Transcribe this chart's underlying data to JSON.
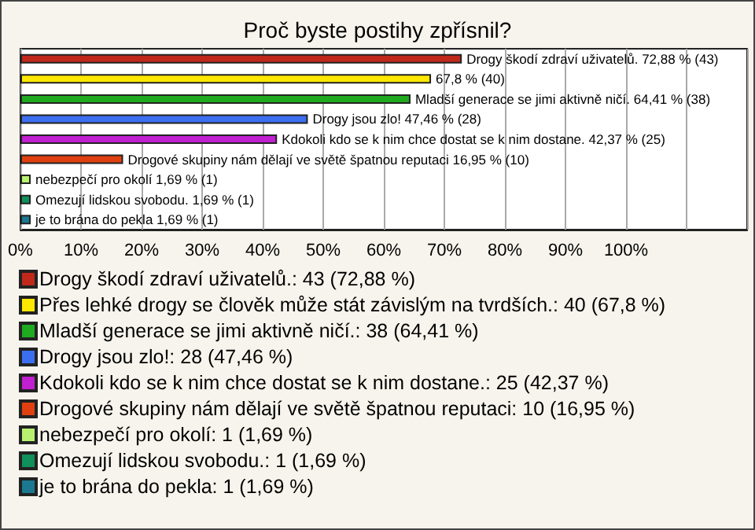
{
  "chart_data": {
    "type": "bar",
    "orientation": "horizontal",
    "title": "Proč byste postihy zpřísnil?",
    "categories": [
      null,
      null,
      null,
      null,
      null,
      null,
      null,
      null,
      null
    ],
    "series": [
      {
        "name": "Drogy škodí zdraví uživatelů.: 43 (72,88 %)",
        "color": "#c0281c",
        "values": [
          72.88,
          null,
          null,
          null,
          null,
          null,
          null,
          null,
          null
        ],
        "value_labels": [
          "Drogy škodí zdraví uživatelů. 72,88 % (43)",
          null,
          null,
          null,
          null,
          null,
          null,
          null,
          null
        ]
      },
      {
        "name": "Přes lehké drogy se člověk může stát závislým na tvrdších.: 40 (67,8 %)",
        "color": "#ffe800",
        "values": [
          null,
          67.8,
          null,
          null,
          null,
          null,
          null,
          null,
          null
        ],
        "value_labels": [
          null,
          "67,8 % (40)",
          null,
          null,
          null,
          null,
          null,
          null,
          null
        ]
      },
      {
        "name": "Mladší generace se jimi aktivně ničí.: 38 (64,41 %)",
        "color": "#1faa1f",
        "values": [
          null,
          null,
          64.41,
          null,
          null,
          null,
          null,
          null,
          null
        ],
        "value_labels": [
          null,
          null,
          "Mladší generace se jimi aktivně ničí. 64,41 % (38)",
          null,
          null,
          null,
          null,
          null,
          null
        ]
      },
      {
        "name": "Drogy jsou zlo!: 28 (47,46 %)",
        "color": "#3c6ef0",
        "values": [
          null,
          null,
          null,
          47.46,
          null,
          null,
          null,
          null,
          null
        ],
        "value_labels": [
          null,
          null,
          null,
          "Drogy jsou zlo! 47,46 % (28)",
          null,
          null,
          null,
          null,
          null
        ]
      },
      {
        "name": "Kdokoli kdo se k nim chce dostat se k nim dostane.: 25 (42,37 %)",
        "color": "#c020d0",
        "values": [
          null,
          null,
          null,
          null,
          42.37,
          null,
          null,
          null,
          null
        ],
        "value_labels": [
          null,
          null,
          null,
          null,
          "Kdokoli kdo se k nim chce dostat se k nim dostane. 42,37 % (25)",
          null,
          null,
          null,
          null
        ]
      },
      {
        "name": "Drogové skupiny nám dělají ve světě špatnou reputaci: 10 (16,95 %)",
        "color": "#e04010",
        "values": [
          null,
          null,
          null,
          null,
          null,
          16.95,
          null,
          null,
          null
        ],
        "value_labels": [
          null,
          null,
          null,
          null,
          null,
          "Drogové skupiny nám dělají ve světě špatnou reputaci 16,95 % (10)",
          null,
          null,
          null
        ]
      },
      {
        "name": "nebezpečí pro okolí: 1 (1,69 %)",
        "color": "#b8f070",
        "values": [
          null,
          null,
          null,
          null,
          null,
          null,
          1.69,
          null,
          null
        ],
        "value_labels": [
          null,
          null,
          null,
          null,
          null,
          null,
          "nebezpečí pro okolí 1,69 % (1)",
          null,
          null
        ]
      },
      {
        "name": "Omezují lidskou svobodu.: 1 (1,69 %)",
        "color": "#10905a",
        "values": [
          null,
          null,
          null,
          null,
          null,
          null,
          null,
          1.69,
          null
        ],
        "value_labels": [
          null,
          null,
          null,
          null,
          null,
          null,
          null,
          "Omezují lidskou svobodu. 1,69 % (1)",
          null
        ]
      },
      {
        "name": "je to brána do pekla: 1 (1,69 %)",
        "color": "#1c7890",
        "values": [
          null,
          null,
          null,
          null,
          null,
          null,
          null,
          null,
          1.69
        ],
        "value_labels": [
          null,
          null,
          null,
          null,
          null,
          null,
          null,
          null,
          "je to brána do pekla 1,69 % (1)"
        ]
      }
    ],
    "xlim": [
      0,
      120
    ],
    "xticks": [
      {
        "value": 0,
        "label": "0%"
      },
      {
        "value": 10,
        "label": "10%"
      },
      {
        "value": 20,
        "label": "20%"
      },
      {
        "value": 30,
        "label": "30%"
      },
      {
        "value": 40,
        "label": "40%"
      },
      {
        "value": 50,
        "label": "50%"
      },
      {
        "value": 60,
        "label": "60%"
      },
      {
        "value": 70,
        "label": "70%"
      },
      {
        "value": 80,
        "label": "80%"
      },
      {
        "value": 90,
        "label": "90%"
      },
      {
        "value": 100,
        "label": "100%"
      },
      {
        "value": 110,
        "label": null
      }
    ],
    "grid": "x",
    "legend": "bottom",
    "tick_labels": "x"
  }
}
